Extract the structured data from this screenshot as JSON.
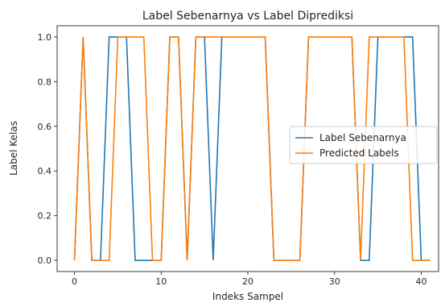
{
  "chart_data": {
    "type": "line",
    "title": "Label Sebenarnya vs Label Diprediksi",
    "xlabel": "Indeks Sampel",
    "ylabel": "Label Kelas",
    "xlim": [
      -2,
      42
    ],
    "ylim": [
      -0.05,
      1.05
    ],
    "xticks": [
      0,
      10,
      20,
      30,
      40
    ],
    "yticks": [
      0.0,
      0.2,
      0.4,
      0.6,
      0.8,
      1.0
    ],
    "xtick_labels": [
      "0",
      "10",
      "20",
      "30",
      "40"
    ],
    "ytick_labels": [
      "0.0",
      "0.2",
      "0.4",
      "0.6",
      "0.8",
      "1.0"
    ],
    "grid": false,
    "legend_position": "center-right",
    "x": [
      0,
      1,
      2,
      3,
      4,
      5,
      6,
      7,
      8,
      9,
      10,
      11,
      12,
      13,
      14,
      15,
      16,
      17,
      18,
      19,
      20,
      21,
      22,
      23,
      24,
      25,
      26,
      27,
      28,
      29,
      30,
      31,
      32,
      33,
      34,
      35,
      36,
      37,
      38,
      39,
      40,
      41
    ],
    "series": [
      {
        "name": "Label Sebenarnya",
        "color": "#1f77b4",
        "values": [
          0,
          1,
          0,
          0,
          1,
          1,
          1,
          0,
          0,
          0,
          0,
          1,
          1,
          0,
          1,
          1,
          0,
          1,
          1,
          1,
          1,
          1,
          1,
          0,
          0,
          0,
          0,
          1,
          1,
          1,
          1,
          1,
          1,
          0,
          0,
          1,
          1,
          1,
          1,
          1,
          0,
          0
        ]
      },
      {
        "name": "Predicted Labels",
        "color": "#ff7f0e",
        "values": [
          0,
          1,
          0,
          0,
          0,
          1,
          1,
          1,
          1,
          0,
          0,
          1,
          1,
          0,
          1,
          1,
          1,
          1,
          1,
          1,
          1,
          1,
          1,
          0,
          0,
          0,
          0,
          1,
          1,
          1,
          1,
          1,
          1,
          0,
          1,
          1,
          1,
          1,
          1,
          0,
          0,
          0
        ]
      }
    ]
  }
}
